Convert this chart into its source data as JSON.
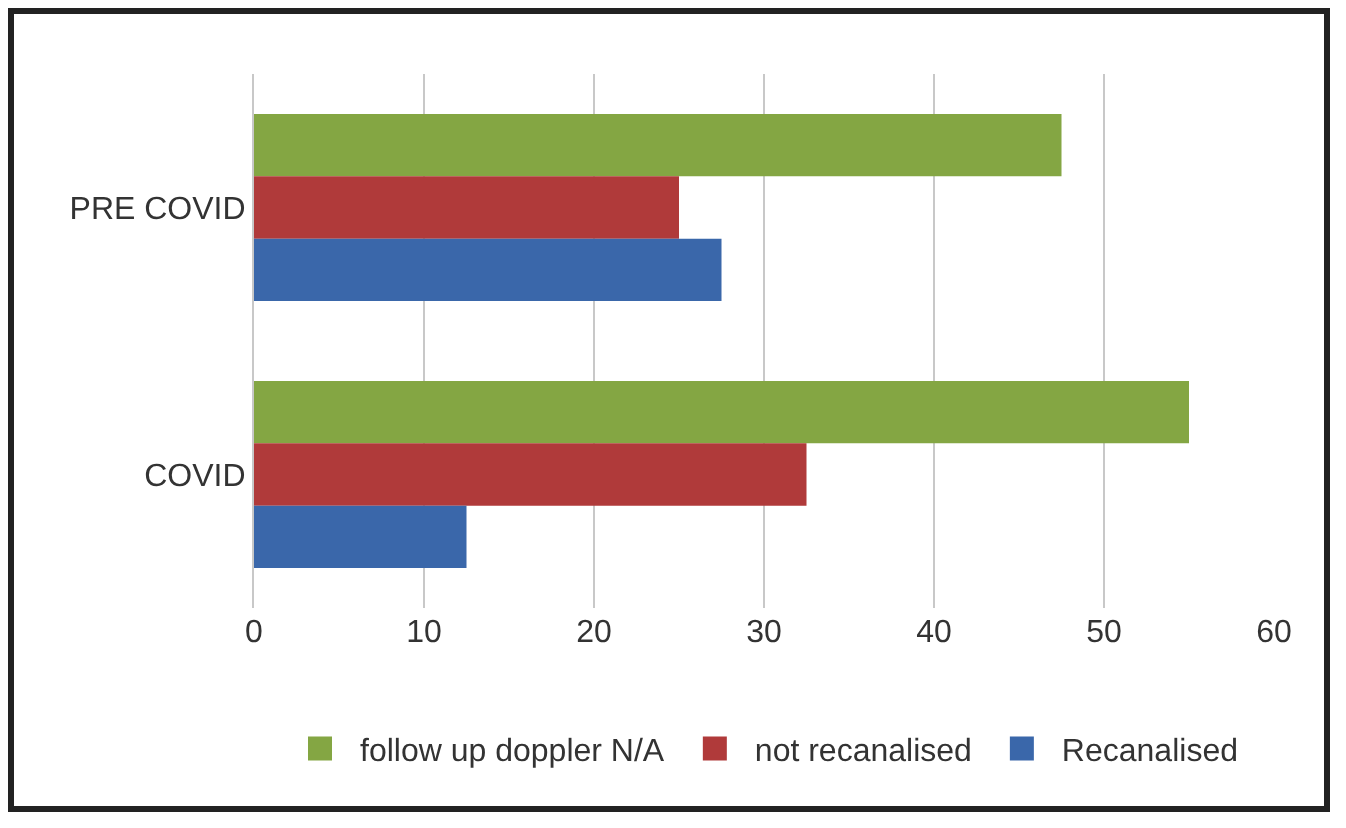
{
  "chart_data": {
    "type": "bar",
    "orientation": "horizontal",
    "categories": [
      "PRE COVID",
      "COVID"
    ],
    "series": [
      {
        "name": "follow up doppler N/A",
        "color": "#84a643",
        "values": [
          47.5,
          55
        ]
      },
      {
        "name": "not recanalised",
        "color": "#b03a3a",
        "values": [
          25,
          32.5
        ]
      },
      {
        "name": "Recanalised",
        "color": "#3a67aa",
        "values": [
          27.5,
          12.5
        ]
      }
    ],
    "xlim": [
      0,
      60
    ],
    "xticks": [
      0,
      10,
      20,
      30,
      40,
      50,
      60
    ],
    "grid": "x",
    "legend": "bottom"
  }
}
